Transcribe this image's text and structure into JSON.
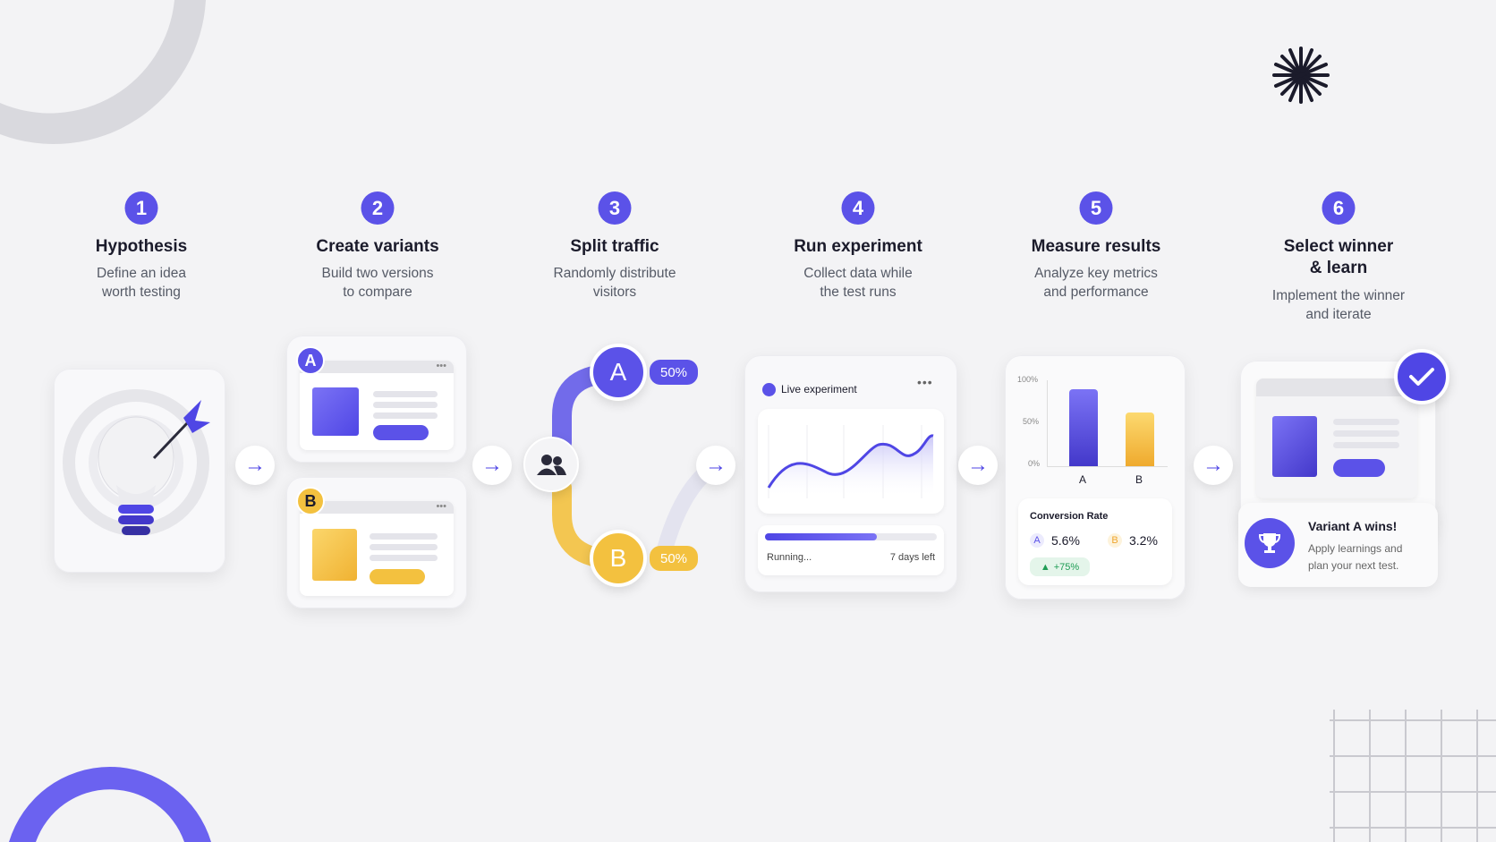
{
  "steps": [
    {
      "number": "1",
      "title": "Hypothesis",
      "desc": [
        "Define an idea",
        "worth testing"
      ]
    },
    {
      "number": "2",
      "title": "Create variants",
      "desc": [
        "Build two versions",
        "to compare"
      ]
    },
    {
      "number": "3",
      "title": "Split traffic",
      "desc": [
        "Randomly distribute",
        "visitors"
      ]
    },
    {
      "number": "4",
      "title": "Run experiment",
      "desc": [
        "Collect data while",
        "the test runs"
      ]
    },
    {
      "number": "5",
      "title": "Measure results",
      "desc": [
        "Analyze key metrics",
        "and performance"
      ]
    },
    {
      "number": "6",
      "title": "Select winner",
      "title2": "& learn",
      "desc": [
        "Implement the winner",
        "and iterate"
      ]
    }
  ],
  "variants": {
    "a": "A",
    "b": "B"
  },
  "split": {
    "a_label": "A",
    "b_label": "B",
    "a_pct": "50%",
    "b_pct": "50%"
  },
  "experiment": {
    "label": "Live experiment",
    "status": "Running...",
    "remaining": "7 days left",
    "progress": 0.65
  },
  "results": {
    "y_ticks": [
      "100%",
      "50%",
      "0%"
    ],
    "categories": [
      "A",
      "B"
    ],
    "values": [
      90,
      62
    ],
    "conv_title": "Conversion Rate",
    "a_label": "A",
    "a_value": "5.6%",
    "b_label": "B",
    "b_value": "3.2%",
    "lift": "+75%"
  },
  "winner": {
    "title": "Variant A wins!",
    "desc": [
      "Apply learnings and",
      "plan your next test."
    ]
  },
  "colors": {
    "accent": "#5b52e8",
    "yellow": "#f3c13f",
    "green": "#1f9d55"
  }
}
